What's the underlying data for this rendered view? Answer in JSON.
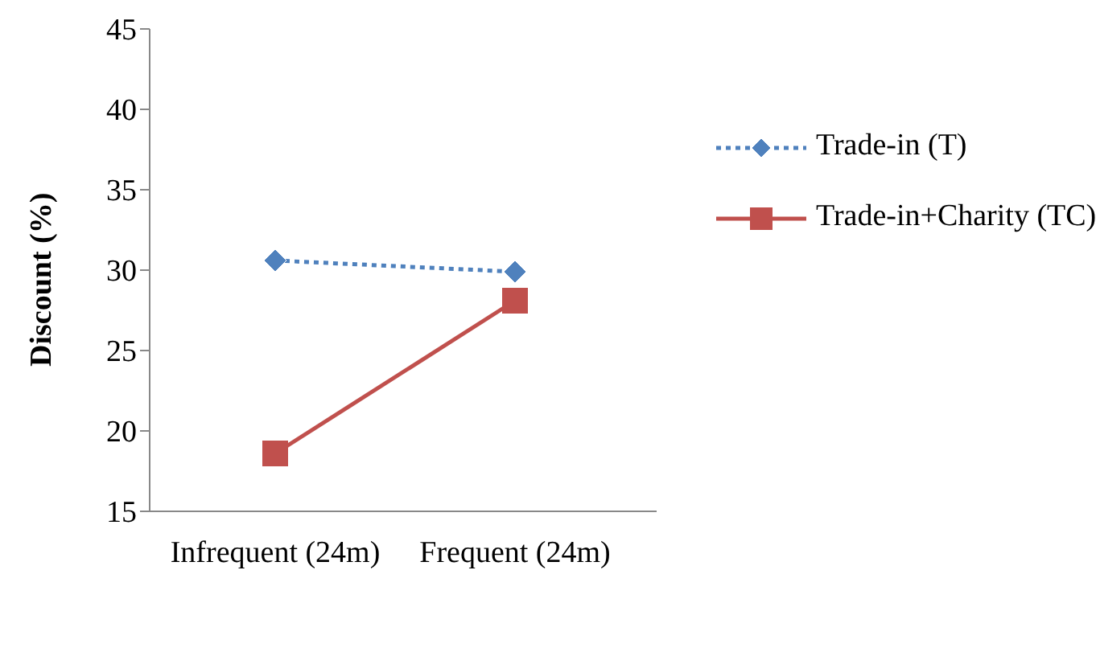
{
  "chart_data": {
    "type": "line",
    "ylabel": "Discount (%)",
    "categories": [
      "Infrequent (24m)",
      "Frequent (24m)"
    ],
    "series": [
      {
        "name": "Trade-in (T)",
        "color": "#4f81bd",
        "values": [
          30.6,
          29.9
        ],
        "marker": "diamond",
        "line_style": "dotted"
      },
      {
        "name": "Trade-in+Charity (TC)",
        "color": "#c0504d",
        "values": [
          18.6,
          28.1
        ],
        "marker": "square",
        "line_style": "solid"
      }
    ],
    "ylim": [
      15,
      45
    ],
    "yticks": [
      15,
      20,
      25,
      30,
      35,
      40,
      45
    ],
    "grid": false,
    "legend": "right"
  }
}
